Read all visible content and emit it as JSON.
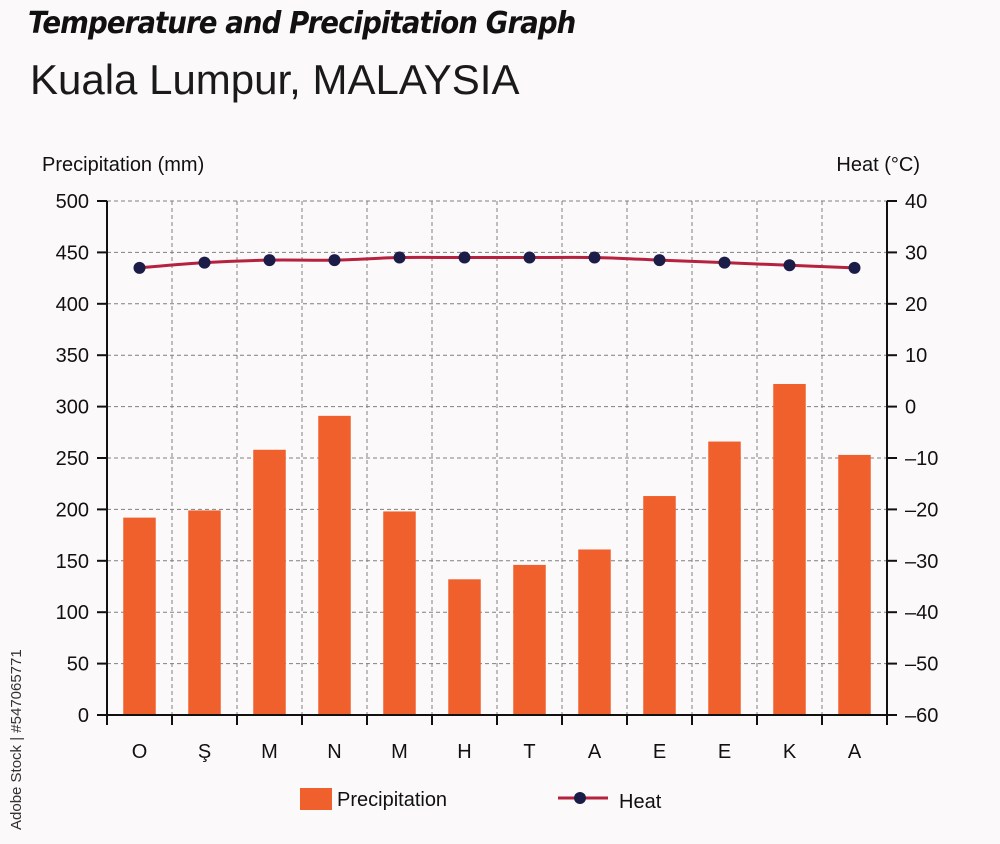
{
  "header": {
    "title": "Temperature and Precipitation Graph",
    "subtitle": "Kuala Lumpur, MALAYSIA"
  },
  "watermark": "Adobe Stock | #547065771",
  "colors": {
    "background": "#fbf9fa",
    "bar": "#f0602c",
    "line": "#b5213f",
    "marker": "#1c1c48",
    "grid": "#808080"
  },
  "chart_data": {
    "type": "bar",
    "categories": [
      "O",
      "Ş",
      "M",
      "N",
      "M",
      "H",
      "T",
      "A",
      "E",
      "E",
      "K",
      "A"
    ],
    "series": [
      {
        "name": "Precipitation",
        "type": "bar",
        "axis": "left",
        "values": [
          192,
          199,
          258,
          291,
          198,
          132,
          146,
          161,
          213,
          266,
          322,
          253
        ]
      },
      {
        "name": "Heat",
        "type": "line",
        "axis": "right",
        "values": [
          27,
          28,
          28.5,
          28.5,
          29,
          29,
          29,
          29,
          28.5,
          28,
          27.5,
          27
        ]
      }
    ],
    "ylabel_left": "Precipitation (mm)",
    "ylabel_right": "Heat (°C)",
    "ylim_left": [
      0,
      500
    ],
    "ylim_right": [
      -60,
      40
    ],
    "yticks_left": [
      0,
      50,
      100,
      150,
      200,
      250,
      300,
      350,
      400,
      450,
      500
    ],
    "yticks_right": [
      -60,
      -50,
      -40,
      -30,
      -20,
      -10,
      0,
      10,
      20,
      30,
      40
    ],
    "grid": true,
    "legend": {
      "position": "bottom",
      "items": [
        "Precipitation",
        "Heat"
      ]
    }
  }
}
